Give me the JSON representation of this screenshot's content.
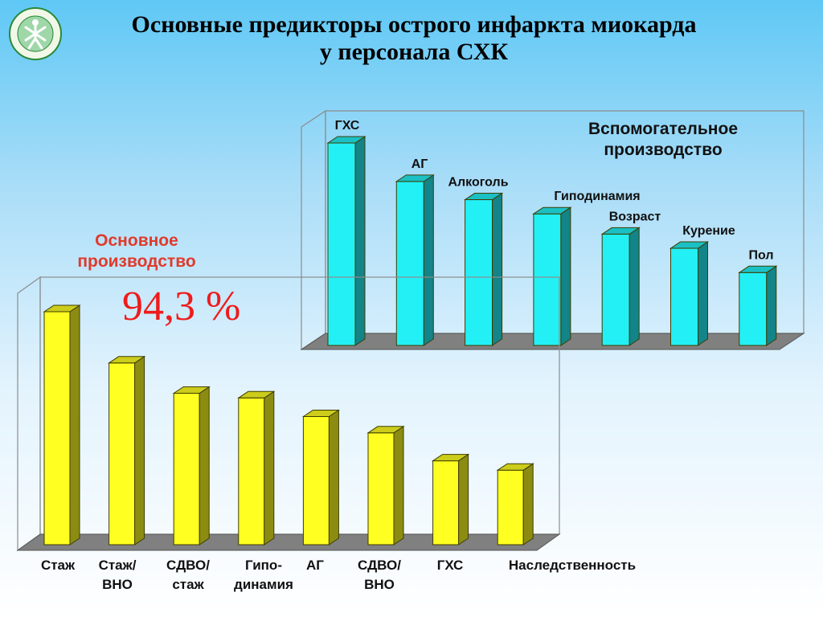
{
  "title": {
    "line1": "Основные предикторы острого инфаркта миокарда",
    "line2": "у персонала СХК"
  },
  "colors": {
    "main_bar": "#ffff22",
    "aux_bar": "#22f0f5",
    "percent_text": "#ee1c1c",
    "main_label_text": "#e03a2c"
  },
  "main_production": {
    "label_line1": "Основное",
    "label_line2": "производство",
    "percent": "94,3 %"
  },
  "aux_production": {
    "label_line1": "Вспомогательное",
    "label_line2": "производство"
  },
  "chart_data": [
    {
      "type": "bar",
      "name": "main",
      "categories": [
        [
          "Стаж"
        ],
        [
          "Стаж/",
          "ВНО"
        ],
        [
          "СДВО/",
          "стаж"
        ],
        [
          "Гипо-",
          "динамия"
        ],
        [
          "АГ"
        ],
        [
          "СДВО/",
          "ВНО"
        ],
        [
          "ГХС"
        ],
        [
          "Наследственность"
        ]
      ],
      "values": [
        100,
        78,
        65,
        63,
        55,
        48,
        36,
        32
      ],
      "ylim": [
        0,
        100
      ],
      "grid": false,
      "color": "#ffff22"
    },
    {
      "type": "bar",
      "name": "aux",
      "categories": [
        "ГХС",
        "АГ",
        "Алкоголь",
        "Гиподинамия",
        "Возраст",
        "Курение",
        "Пол"
      ],
      "values": [
        100,
        81,
        72,
        65,
        55,
        48,
        36
      ],
      "ylim": [
        0,
        100
      ],
      "grid": false,
      "color": "#22f0f5"
    }
  ]
}
